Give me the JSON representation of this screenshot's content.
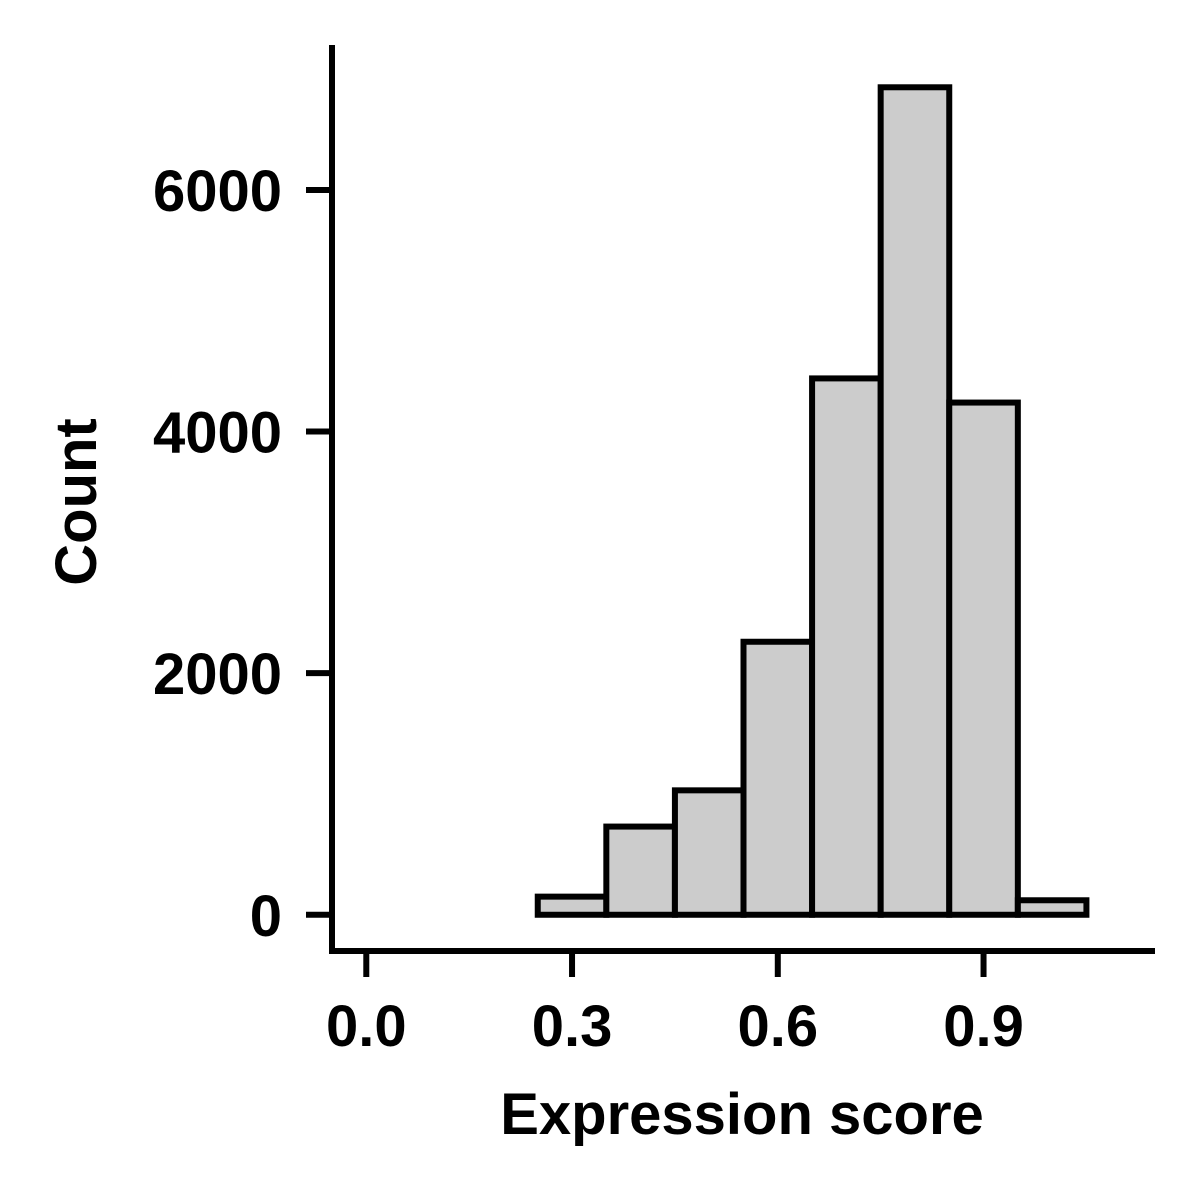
{
  "chart_data": {
    "type": "bar",
    "title": "",
    "xlabel": "Expression score",
    "ylabel": "Count",
    "xlim": [
      -0.05,
      1.15
    ],
    "ylim": [
      -300,
      7200
    ],
    "x_ticks": [
      0.0,
      0.3,
      0.6,
      0.9
    ],
    "x_tick_labels": [
      "0.0",
      "0.3",
      "0.6",
      "0.9"
    ],
    "y_ticks": [
      0,
      2000,
      4000,
      6000
    ],
    "y_tick_labels": [
      "0",
      "2000",
      "4000",
      "6000"
    ],
    "bin_width": 0.1,
    "bins": [
      {
        "x0": 0.05,
        "x1": 0.15,
        "count": 0
      },
      {
        "x0": 0.15,
        "x1": 0.25,
        "count": 0
      },
      {
        "x0": 0.25,
        "x1": 0.35,
        "count": 150
      },
      {
        "x0": 0.35,
        "x1": 0.45,
        "count": 730
      },
      {
        "x0": 0.45,
        "x1": 0.55,
        "count": 1030
      },
      {
        "x0": 0.55,
        "x1": 0.65,
        "count": 2260
      },
      {
        "x0": 0.65,
        "x1": 0.75,
        "count": 4440
      },
      {
        "x0": 0.75,
        "x1": 0.85,
        "count": 6850
      },
      {
        "x0": 0.85,
        "x1": 0.95,
        "count": 4240
      },
      {
        "x0": 0.95,
        "x1": 1.05,
        "count": 120
      }
    ],
    "grid": false,
    "legend": "none",
    "bar_fill": "#cccccc",
    "bar_stroke": "#000000"
  }
}
